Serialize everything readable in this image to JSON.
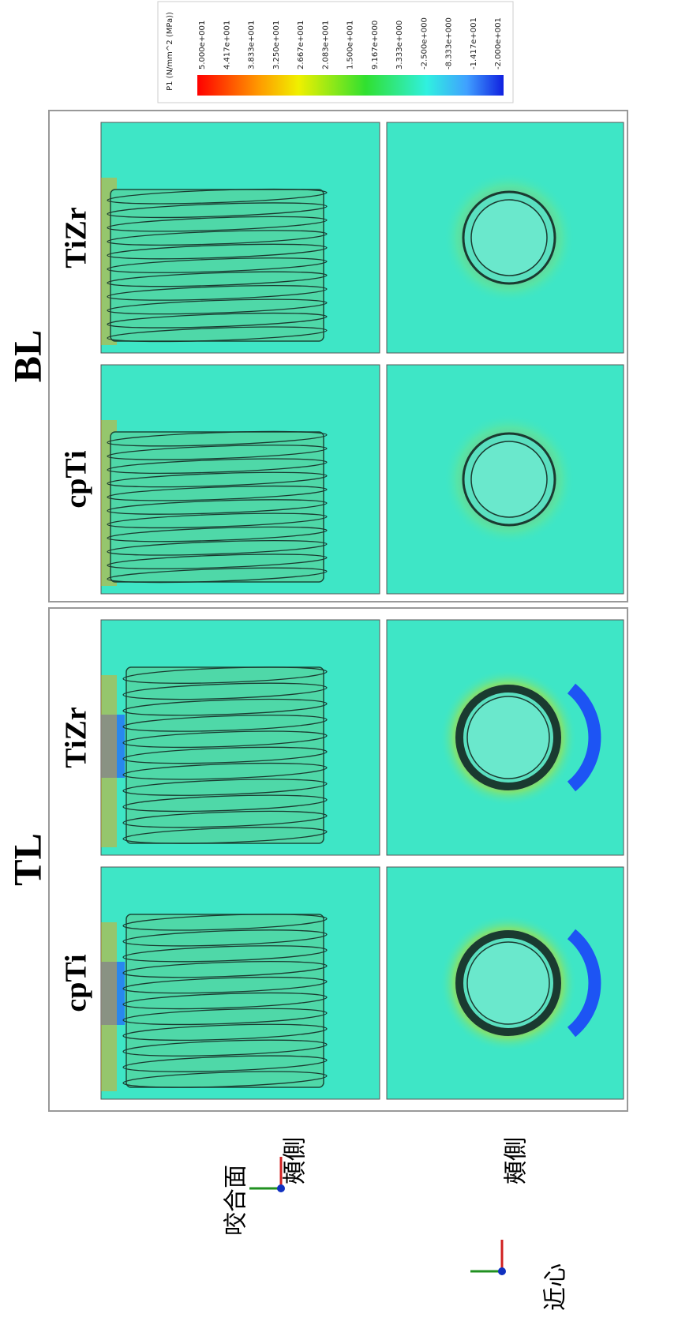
{
  "colorbar": {
    "title": "P1 (N/mm^2 (MPa))",
    "labels": [
      "5.000e+001",
      "4.417e+001",
      "3.833e+001",
      "3.250e+001",
      "2.667e+001",
      "2.083e+001",
      "1.500e+001",
      "9.167e+000",
      "3.333e+000",
      "-2.500e+000",
      "-8.333e+000",
      "-1.417e+001",
      "-2.000e+001"
    ]
  },
  "groups": [
    {
      "label": "BL",
      "panels": [
        "cpTi",
        "TiZr"
      ]
    },
    {
      "label": "TL",
      "panels": [
        "cpTi",
        "TiZr"
      ]
    }
  ],
  "orientation": {
    "upper": [
      "咬合面",
      "頰側"
    ],
    "lower": [
      "頰側",
      "近心"
    ]
  }
}
